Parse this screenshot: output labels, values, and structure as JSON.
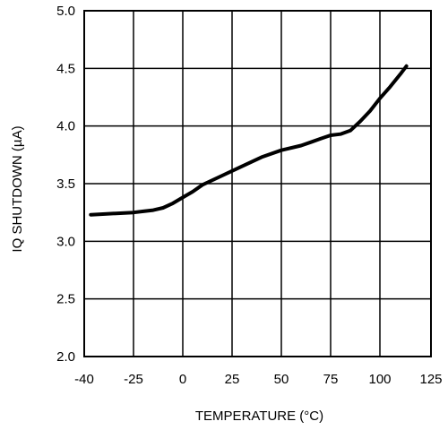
{
  "chart_data": {
    "type": "line",
    "title": "",
    "xlabel": "TEMPERATURE (°C)",
    "ylabel": "IQ SHUTDOWN (µA)",
    "xlim": [
      -40,
      125
    ],
    "ylim": [
      2.0,
      5.0
    ],
    "xticks": [
      -40,
      -25,
      0,
      25,
      50,
      75,
      100,
      125
    ],
    "xtick_labels": [
      "-40",
      "-25",
      "0",
      "25",
      "50",
      "75",
      "100",
      "125"
    ],
    "yticks": [
      2.0,
      2.5,
      3.0,
      3.5,
      4.0,
      4.5,
      5.0
    ],
    "ytick_labels": [
      "2.0",
      "2.5",
      "3.0",
      "3.5",
      "4.0",
      "4.5",
      "5.0"
    ],
    "grid": true,
    "legend": "none",
    "series": [
      {
        "color": "#000000",
        "x": [
          -38,
          -25,
          -20,
          -15,
          -10,
          -5,
          0,
          5,
          10,
          20,
          30,
          40,
          50,
          60,
          65,
          70,
          75,
          80,
          85,
          90,
          95,
          100,
          105,
          110,
          113
        ],
        "y": [
          3.23,
          3.25,
          3.26,
          3.27,
          3.29,
          3.33,
          3.38,
          3.43,
          3.49,
          3.57,
          3.65,
          3.73,
          3.79,
          3.83,
          3.86,
          3.89,
          3.92,
          3.93,
          3.96,
          4.04,
          4.13,
          4.24,
          4.34,
          4.45,
          4.52
        ]
      }
    ]
  }
}
